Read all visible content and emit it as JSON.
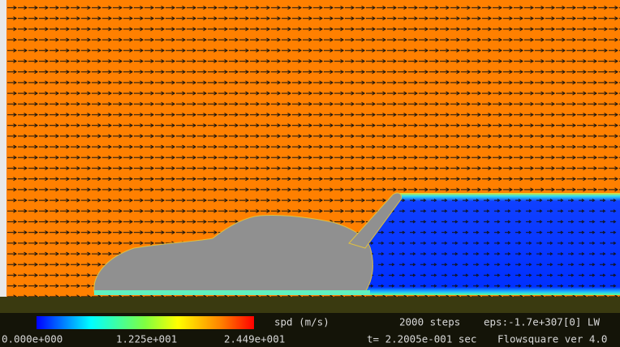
{
  "legend": {
    "label": "spd (m/s)",
    "min": "0.000e+000",
    "mid": "1.225e+001",
    "max": "2.449e+001"
  },
  "status": {
    "steps": "2000 steps",
    "eps": "eps:-1.7e+307[0] LW",
    "time": "t= 2.2005e-001 sec",
    "version": "Flowsquare ver 4.0"
  }
}
